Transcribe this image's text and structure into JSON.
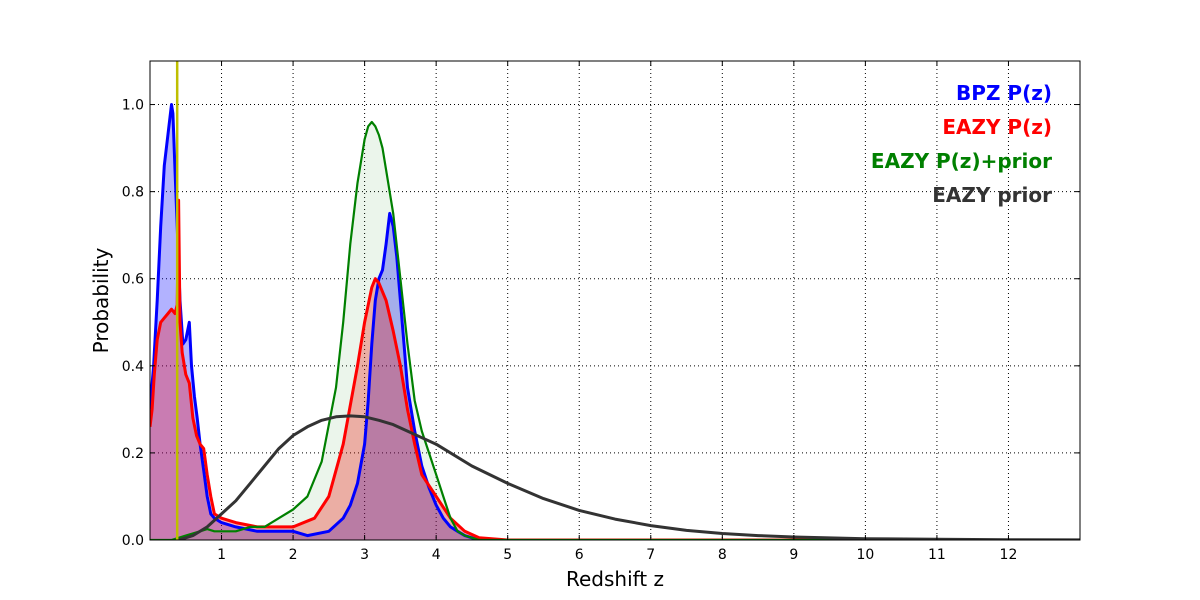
{
  "chart_data": {
    "type": "line",
    "xlabel": "Redshift z",
    "ylabel": "Probability",
    "xlim": [
      0,
      13
    ],
    "ylim": [
      0,
      1.1
    ],
    "x_ticks": [
      1,
      2,
      3,
      4,
      5,
      6,
      7,
      8,
      9,
      10,
      11,
      12
    ],
    "x_tick_labels": [
      "1",
      "2",
      "3",
      "4",
      "5",
      "6",
      "7",
      "8",
      "9",
      "10",
      "11",
      "12"
    ],
    "y_ticks": [
      0.0,
      0.2,
      0.4,
      0.6,
      0.8,
      1.0
    ],
    "y_tick_labels": [
      "0.0",
      "0.2",
      "0.4",
      "0.6",
      "0.8",
      "1.0"
    ],
    "grid": true,
    "legend_position": "top-right",
    "vertical_line": {
      "x": 0.38,
      "color": "#bfbf00"
    },
    "series": [
      {
        "name": "BPZ P(z)",
        "color": "#0000ff",
        "fill": "#0000ff",
        "x": [
          0.0,
          0.05,
          0.1,
          0.15,
          0.2,
          0.25,
          0.3,
          0.32,
          0.35,
          0.38,
          0.42,
          0.46,
          0.5,
          0.55,
          0.58,
          0.62,
          0.66,
          0.7,
          0.75,
          0.8,
          0.85,
          0.9,
          1.0,
          1.2,
          1.5,
          1.8,
          2.0,
          2.2,
          2.5,
          2.7,
          2.8,
          2.9,
          3.0,
          3.05,
          3.1,
          3.15,
          3.2,
          3.25,
          3.3,
          3.35,
          3.4,
          3.45,
          3.5,
          3.55,
          3.6,
          3.7,
          3.8,
          3.9,
          4.0,
          4.1,
          4.2,
          4.3,
          4.4,
          4.5,
          4.6,
          5.0,
          13.0
        ],
        "y": [
          0.3,
          0.4,
          0.55,
          0.72,
          0.86,
          0.93,
          1.0,
          0.98,
          0.85,
          0.72,
          0.55,
          0.45,
          0.46,
          0.5,
          0.4,
          0.33,
          0.28,
          0.22,
          0.16,
          0.1,
          0.06,
          0.05,
          0.04,
          0.03,
          0.02,
          0.02,
          0.02,
          0.01,
          0.02,
          0.05,
          0.08,
          0.13,
          0.22,
          0.32,
          0.45,
          0.55,
          0.6,
          0.62,
          0.68,
          0.75,
          0.72,
          0.65,
          0.55,
          0.45,
          0.35,
          0.25,
          0.17,
          0.12,
          0.08,
          0.05,
          0.03,
          0.02,
          0.01,
          0.005,
          0.0,
          0.0,
          0.0
        ]
      },
      {
        "name": "EAZY P(z)",
        "color": "#ff0000",
        "fill": "#ff0000",
        "x": [
          0.0,
          0.03,
          0.06,
          0.1,
          0.15,
          0.2,
          0.25,
          0.3,
          0.35,
          0.38,
          0.4,
          0.42,
          0.45,
          0.5,
          0.55,
          0.6,
          0.65,
          0.7,
          0.75,
          0.8,
          0.85,
          0.9,
          1.0,
          1.2,
          1.5,
          2.0,
          2.3,
          2.5,
          2.7,
          2.9,
          3.0,
          3.1,
          3.15,
          3.2,
          3.3,
          3.4,
          3.5,
          3.6,
          3.7,
          3.8,
          4.0,
          4.2,
          4.4,
          4.6,
          5.0,
          13.0
        ],
        "y": [
          0.26,
          0.3,
          0.38,
          0.46,
          0.5,
          0.51,
          0.52,
          0.53,
          0.52,
          0.54,
          0.78,
          0.5,
          0.43,
          0.38,
          0.36,
          0.28,
          0.24,
          0.22,
          0.21,
          0.15,
          0.1,
          0.06,
          0.05,
          0.04,
          0.03,
          0.03,
          0.05,
          0.1,
          0.22,
          0.4,
          0.5,
          0.58,
          0.6,
          0.59,
          0.55,
          0.48,
          0.4,
          0.3,
          0.22,
          0.15,
          0.1,
          0.05,
          0.02,
          0.005,
          0.0,
          0.0
        ]
      },
      {
        "name": "EAZY P(z)+prior",
        "color": "#008000",
        "fill": "#008000",
        "x": [
          0.0,
          0.3,
          0.5,
          0.7,
          0.8,
          0.9,
          1.0,
          1.2,
          1.4,
          1.6,
          1.8,
          2.0,
          2.2,
          2.4,
          2.6,
          2.7,
          2.8,
          2.9,
          3.0,
          3.05,
          3.1,
          3.15,
          3.2,
          3.25,
          3.3,
          3.4,
          3.5,
          3.6,
          3.7,
          3.8,
          3.9,
          4.0,
          4.1,
          4.2,
          4.3,
          4.4,
          4.5,
          4.6,
          5.0,
          13.0
        ],
        "y": [
          0.0,
          0.0,
          0.01,
          0.02,
          0.025,
          0.02,
          0.02,
          0.02,
          0.03,
          0.03,
          0.05,
          0.07,
          0.1,
          0.18,
          0.35,
          0.5,
          0.68,
          0.82,
          0.92,
          0.95,
          0.96,
          0.95,
          0.93,
          0.9,
          0.85,
          0.75,
          0.6,
          0.45,
          0.32,
          0.25,
          0.2,
          0.15,
          0.1,
          0.05,
          0.02,
          0.01,
          0.005,
          0.0,
          0.0,
          0.0
        ]
      },
      {
        "name": "EAZY prior",
        "color": "#333333",
        "fill": "",
        "x": [
          0.4,
          0.6,
          0.8,
          1.0,
          1.2,
          1.4,
          1.6,
          1.8,
          2.0,
          2.2,
          2.4,
          2.6,
          2.8,
          3.0,
          3.2,
          3.4,
          3.6,
          3.8,
          4.0,
          4.5,
          5.0,
          5.5,
          6.0,
          6.5,
          7.0,
          7.5,
          8.0,
          8.5,
          9.0,
          10.0,
          11.0,
          12.0,
          13.0
        ],
        "y": [
          0.0,
          0.01,
          0.03,
          0.06,
          0.09,
          0.13,
          0.17,
          0.21,
          0.24,
          0.26,
          0.275,
          0.283,
          0.285,
          0.283,
          0.275,
          0.265,
          0.25,
          0.235,
          0.22,
          0.17,
          0.13,
          0.095,
          0.068,
          0.048,
          0.033,
          0.022,
          0.015,
          0.01,
          0.007,
          0.003,
          0.0015,
          0.0007,
          0.0003
        ]
      }
    ]
  }
}
